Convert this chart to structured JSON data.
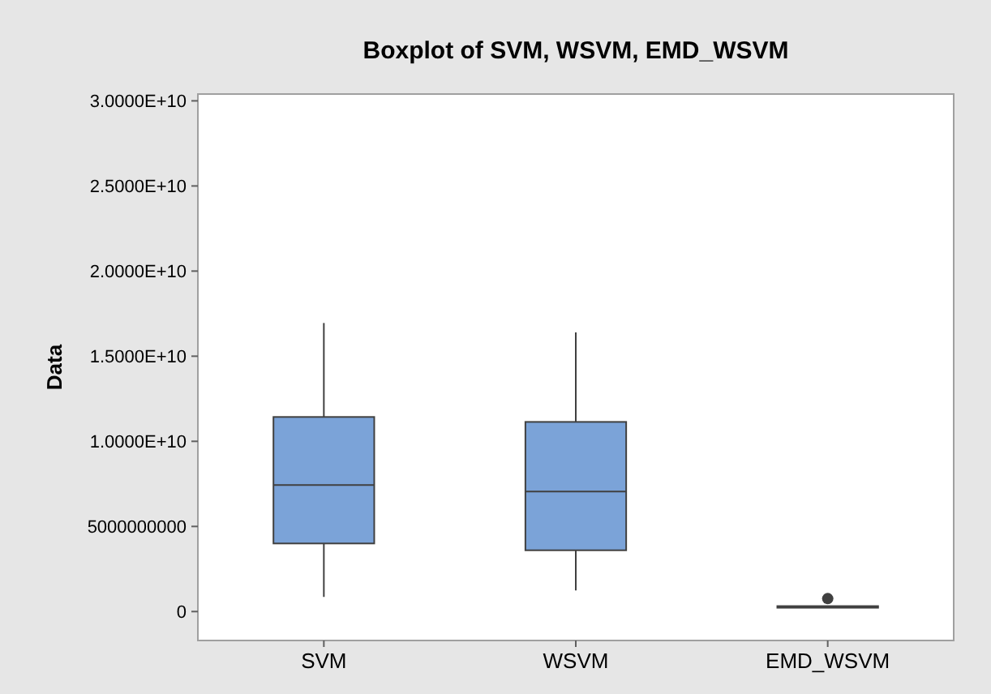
{
  "chart_data": {
    "type": "box",
    "title": "Boxplot of  SVM, WSVM, EMD_WSVM",
    "ylabel": "Data",
    "categories": [
      "SVM",
      "WSVM",
      "EMD_WSVM"
    ],
    "color": "#7ba3d8",
    "boxes": [
      {
        "low": 860000000,
        "q1": 4000000000,
        "median": 7430000000,
        "q3": 11430000000,
        "high": 16950000000
      },
      {
        "low": 1240000000,
        "q1": 3600000000,
        "median": 7050000000,
        "q3": 11140000000,
        "high": 16400000000
      },
      {
        "low": 250000000,
        "q1": 250000000,
        "median": 290000000,
        "q3": 320000000,
        "high": 320000000,
        "outliers": [
          760000000
        ]
      }
    ],
    "ylim": [
      -1700000000,
      30400000000
    ],
    "yticks": [
      0,
      5000000000,
      {
        "value": 10000000000,
        "label": "1.0000E+10"
      },
      {
        "value": 15000000000,
        "label": "1.5000E+10"
      },
      {
        "value": 20000000000,
        "label": "2.0000E+10"
      },
      {
        "value": 25000000000,
        "label": "2.5000E+10"
      },
      {
        "value": 30000000000,
        "label": "3.0000E+10"
      }
    ],
    "grid": false
  }
}
